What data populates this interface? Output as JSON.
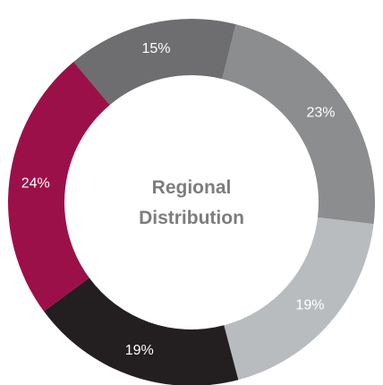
{
  "chart_data": {
    "type": "pie",
    "title": "Regional Distribution",
    "values": [
      15,
      23,
      19,
      19,
      24
    ],
    "value_labels": [
      "15%",
      "23%",
      "19%",
      "19%",
      "24%"
    ],
    "colors": [
      "#6e6e70",
      "#8c8d8f",
      "#b9bcbf",
      "#231f20",
      "#9b1049"
    ]
  }
}
